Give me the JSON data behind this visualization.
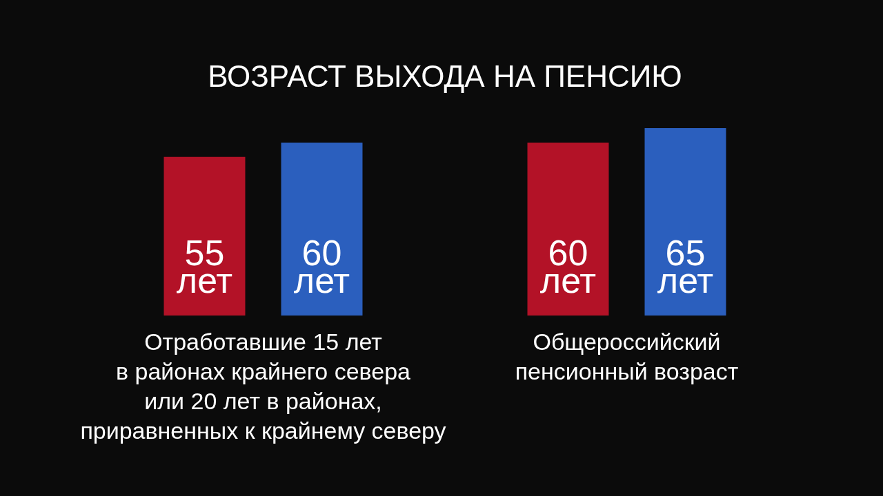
{
  "chart_data": {
    "type": "bar",
    "title": "ВОЗРАСТ ВЫХОДА НА ПЕНСИЮ",
    "categories": [
      "Отработавшие 15 лет\nв районах крайнего севера\nили 20 лет в районах,\nприравненных к крайнему северу",
      "Общероссийский\nпенсионный возраст"
    ],
    "series": [
      {
        "color": "#b31227",
        "values": [
          55,
          60
        ],
        "value_labels": [
          "55 лет",
          "60 лет"
        ]
      },
      {
        "color": "#2b5fbe",
        "values": [
          60,
          65
        ],
        "value_labels": [
          "60 лет",
          "65 лет"
        ]
      }
    ],
    "tick_labels": "x"
  }
}
